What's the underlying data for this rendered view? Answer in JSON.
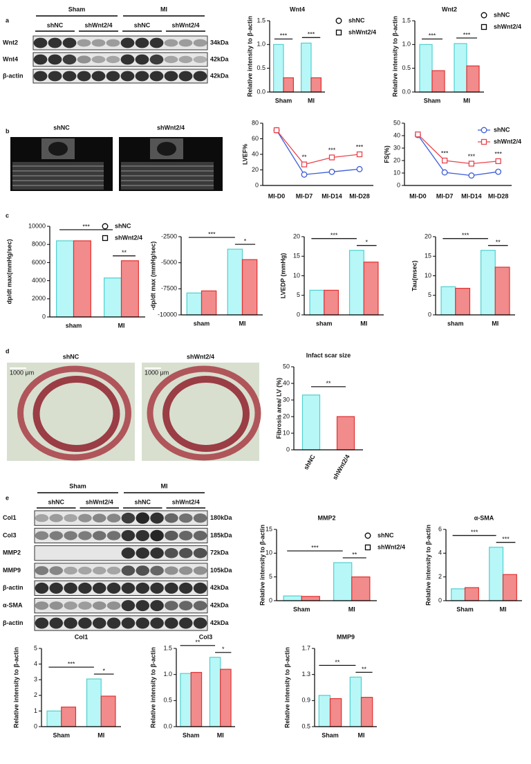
{
  "panels": [
    "a",
    "b",
    "c",
    "d",
    "e"
  ],
  "blot_a": {
    "groups": [
      "Sham",
      "MI"
    ],
    "lanes": [
      "shNC",
      "shWnt2/4",
      "shNC",
      "shWnt2/4"
    ],
    "rows": [
      {
        "name": "Wnt2",
        "size": "34kDa"
      },
      {
        "name": "Wnt4",
        "size": "42kDa"
      },
      {
        "name": "β-actin",
        "size": "42kDa"
      }
    ]
  },
  "echo": {
    "labels": [
      "shNC",
      "shWnt2/4"
    ]
  },
  "histology": {
    "labels": [
      "shNC",
      "shWnt2/4"
    ],
    "scale_bar": "1000 μm"
  },
  "blot_e": {
    "groups": [
      "Sham",
      "MI"
    ],
    "lanes": [
      "shNC",
      "shWnt2/4",
      "shNC",
      "shWnt2/4"
    ],
    "rows": [
      {
        "name": "Col1",
        "size": "180kDa"
      },
      {
        "name": "Col3",
        "size": "185kDa"
      },
      {
        "name": "MMP2",
        "size": "72kDa"
      },
      {
        "name": "MMP9",
        "size": "105kDa"
      },
      {
        "name": "β-actin",
        "size": "42kDa"
      },
      {
        "name": "α-SMA",
        "size": "42kDa"
      },
      {
        "name": "β-actin",
        "size": "42kDa"
      }
    ]
  },
  "chart_data": [
    {
      "type": "bar",
      "title": "Wnt4",
      "y_label": "Relative intensity to β-actin",
      "categories": [
        "Sham",
        "MI"
      ],
      "series": [
        {
          "name": "shNC",
          "color": "#b8f7f7",
          "edgecolor": "#4fcfcf",
          "marker": "circle",
          "values": [
            1.0,
            1.03
          ]
        },
        {
          "name": "shWnt2/4",
          "color": "#f28b8b",
          "edgecolor": "#e03030",
          "marker": "square",
          "values": [
            0.3,
            0.3
          ]
        }
      ],
      "ylim": [
        0,
        1.5
      ],
      "yticks": [
        {
          "value": 0,
          "label": "0.0"
        },
        0.5,
        {
          "value": 1,
          "label": "1.0"
        },
        1.5
      ],
      "annotations": [
        "***",
        "***"
      ]
    },
    {
      "type": "bar",
      "title": "Wnt2",
      "y_label": "Relative intensity to β-actin",
      "categories": [
        "Sham",
        "MI"
      ],
      "series": [
        {
          "name": "shNC",
          "color": "#b8f7f7",
          "edgecolor": "#4fcfcf",
          "marker": "circle",
          "values": [
            1.0,
            1.02
          ]
        },
        {
          "name": "shWnt2/4",
          "color": "#f28b8b",
          "edgecolor": "#e03030",
          "marker": "square",
          "values": [
            0.45,
            0.55
          ]
        }
      ],
      "ylim": [
        0,
        1.5
      ],
      "yticks": [
        {
          "value": 0,
          "label": "0.0"
        },
        0.5,
        {
          "value": 1,
          "label": "1.0"
        },
        1.5
      ],
      "annotations": [
        "***",
        "***"
      ]
    },
    {
      "type": "line",
      "y_label": "LVEF%",
      "categories": [
        "MI-D0",
        "MI-D7",
        "MI-D14",
        "MI-D28"
      ],
      "series": [
        {
          "color": "#3a5bd9",
          "marker": "circle",
          "values": [
            71,
            14,
            17.5,
            21
          ]
        },
        {
          "color": "#e8434b",
          "marker": "square",
          "values": [
            71,
            27,
            36,
            40
          ]
        }
      ],
      "ylim": [
        0,
        80
      ],
      "yticks": [
        0,
        20,
        40,
        60,
        80
      ],
      "annotations": [
        "**",
        "***",
        "***"
      ]
    },
    {
      "type": "line",
      "y_label": "FS(%)",
      "categories": [
        "MI-D0",
        "MI-D7",
        "MI-D14",
        "MI-D28"
      ],
      "series": [
        {
          "name": "shNC",
          "color": "#3a5bd9",
          "marker": "circle",
          "values": [
            40.5,
            10.5,
            8,
            11
          ]
        },
        {
          "name": "shWnt2/4",
          "color": "#e8434b",
          "marker": "square",
          "values": [
            41,
            20,
            17.5,
            19.5
          ]
        }
      ],
      "ylim": [
        0,
        50
      ],
      "yticks": [
        0,
        10,
        20,
        30,
        40,
        50
      ],
      "annotations": [
        "***",
        "***",
        "***"
      ]
    },
    {
      "type": "bar",
      "y_label": "dp/dt max(mmHg/sec)",
      "categories": [
        "sham",
        "MI"
      ],
      "series": [
        {
          "name": "shNC",
          "color": "#b8f7f7",
          "edgecolor": "#4fcfcf",
          "marker": "circle",
          "values": [
            8400,
            4300
          ]
        },
        {
          "name": "shWnt2/4",
          "color": "#f28b8b",
          "edgecolor": "#e03030",
          "marker": "square",
          "values": [
            8400,
            6200
          ]
        }
      ],
      "ylim": [
        0,
        10000
      ],
      "yticks": [
        0,
        2000,
        4000,
        6000,
        8000,
        10000
      ],
      "annotations": [
        "***",
        "**"
      ]
    },
    {
      "type": "bar",
      "y_label": "-dp/dt max (mmHg/sec)",
      "categories": [
        "sham",
        "MI"
      ],
      "series": [
        {
          "color": "#b8f7f7",
          "edgecolor": "#4fcfcf",
          "values": [
            -7900,
            -3700
          ]
        },
        {
          "color": "#f28b8b",
          "edgecolor": "#e03030",
          "values": [
            -7700,
            -4700
          ]
        }
      ],
      "ylim": [
        -10000,
        -2500
      ],
      "yticks": [
        -10000,
        -7500,
        -5000,
        -2500
      ],
      "annotations": [
        "***",
        "*"
      ]
    },
    {
      "type": "bar",
      "y_label": "LVEDP (mmHg)",
      "categories": [
        "sham",
        "MI"
      ],
      "series": [
        {
          "color": "#b8f7f7",
          "edgecolor": "#4fcfcf",
          "values": [
            6.3,
            16.5
          ]
        },
        {
          "color": "#f28b8b",
          "edgecolor": "#e03030",
          "values": [
            6.3,
            13.5
          ]
        }
      ],
      "ylim": [
        0,
        20
      ],
      "yticks": [
        0,
        5,
        10,
        15,
        20
      ],
      "annotations": [
        "***",
        "*"
      ]
    },
    {
      "type": "bar",
      "y_label": "Tau(msec)",
      "categories": [
        "sham",
        "MI"
      ],
      "series": [
        {
          "color": "#b8f7f7",
          "edgecolor": "#4fcfcf",
          "values": [
            7.2,
            16.5
          ]
        },
        {
          "color": "#f28b8b",
          "edgecolor": "#e03030",
          "values": [
            6.8,
            12.2
          ]
        }
      ],
      "ylim": [
        0,
        20
      ],
      "yticks": [
        0,
        5,
        10,
        15,
        20
      ],
      "annotations": [
        "***",
        "**"
      ]
    },
    {
      "type": "bar",
      "title": "Infact scar size",
      "y_label": "Fibrosis area/ LV (%)",
      "categories": [
        "shNC",
        "shWnt2/4"
      ],
      "values": [
        33,
        20
      ],
      "colors": [
        "#b8f7f7",
        "#f28b8b"
      ],
      "edgecolors": [
        "#4fcfcf",
        "#e03030"
      ],
      "ylim": [
        0,
        50
      ],
      "yticks": [
        0,
        10,
        20,
        30,
        40,
        50
      ],
      "annotations": [
        "**"
      ]
    },
    {
      "type": "bar",
      "title": "MMP2",
      "y_label": "Relative intensity to β-actin",
      "categories": [
        "Sham",
        "MI"
      ],
      "series": [
        {
          "name": "shNC",
          "color": "#b8f7f7",
          "edgecolor": "#4fcfcf",
          "marker": "circle",
          "values": [
            1.0,
            8.0
          ]
        },
        {
          "name": "shWnt2/4",
          "color": "#f28b8b",
          "edgecolor": "#e03030",
          "marker": "square",
          "values": [
            0.9,
            5.0
          ]
        }
      ],
      "ylim": [
        0,
        15
      ],
      "yticks": [
        0,
        5,
        10,
        15
      ],
      "annotations": [
        "***",
        "**"
      ]
    },
    {
      "type": "bar",
      "title": "α-SMA",
      "y_label": "Relative intensity to β-actin",
      "categories": [
        "Sham",
        "MI"
      ],
      "series": [
        {
          "color": "#b8f7f7",
          "edgecolor": "#4fcfcf",
          "values": [
            1.0,
            4.5
          ]
        },
        {
          "color": "#f28b8b",
          "edgecolor": "#e03030",
          "values": [
            1.1,
            2.2
          ]
        }
      ],
      "ylim": [
        0,
        6
      ],
      "yticks": [
        0,
        2,
        4,
        6
      ],
      "annotations": [
        "***",
        "***"
      ]
    },
    {
      "type": "bar",
      "title": "Col1",
      "y_label": "Relative intensity to β-actin",
      "categories": [
        "Sham",
        "MI"
      ],
      "series": [
        {
          "color": "#b8f7f7",
          "edgecolor": "#4fcfcf",
          "values": [
            1.0,
            3.05
          ]
        },
        {
          "color": "#f28b8b",
          "edgecolor": "#e03030",
          "values": [
            1.25,
            1.95
          ]
        }
      ],
      "ylim": [
        0,
        5
      ],
      "yticks": [
        0,
        1,
        2,
        3,
        4,
        5
      ],
      "annotations": [
        "***",
        "*"
      ]
    },
    {
      "type": "bar",
      "title": "Col3",
      "y_label": "Relative intensity to β-actin",
      "categories": [
        "Sham",
        "MI"
      ],
      "series": [
        {
          "color": "#b8f7f7",
          "edgecolor": "#4fcfcf",
          "values": [
            1.02,
            1.33
          ]
        },
        {
          "color": "#f28b8b",
          "edgecolor": "#e03030",
          "values": [
            1.04,
            1.1
          ]
        }
      ],
      "ylim": [
        0,
        1.5
      ],
      "yticks": [
        {
          "value": 0,
          "label": "0.0"
        },
        0.5,
        {
          "value": 1,
          "label": "1.0"
        },
        1.5
      ],
      "annotations": [
        "**",
        "*"
      ]
    },
    {
      "type": "bar",
      "title": "MMP9",
      "y_label": "Relative intensity to β-actin",
      "categories": [
        "Sham",
        "MI"
      ],
      "series": [
        {
          "color": "#b8f7f7",
          "edgecolor": "#4fcfcf",
          "values": [
            0.98,
            1.26
          ]
        },
        {
          "color": "#f28b8b",
          "edgecolor": "#e03030",
          "values": [
            0.93,
            0.95
          ]
        }
      ],
      "ylim": [
        0.5,
        1.7
      ],
      "yticks": [
        0.5,
        0.9,
        1.3,
        1.7
      ],
      "annotations": [
        "**",
        "**"
      ]
    }
  ]
}
